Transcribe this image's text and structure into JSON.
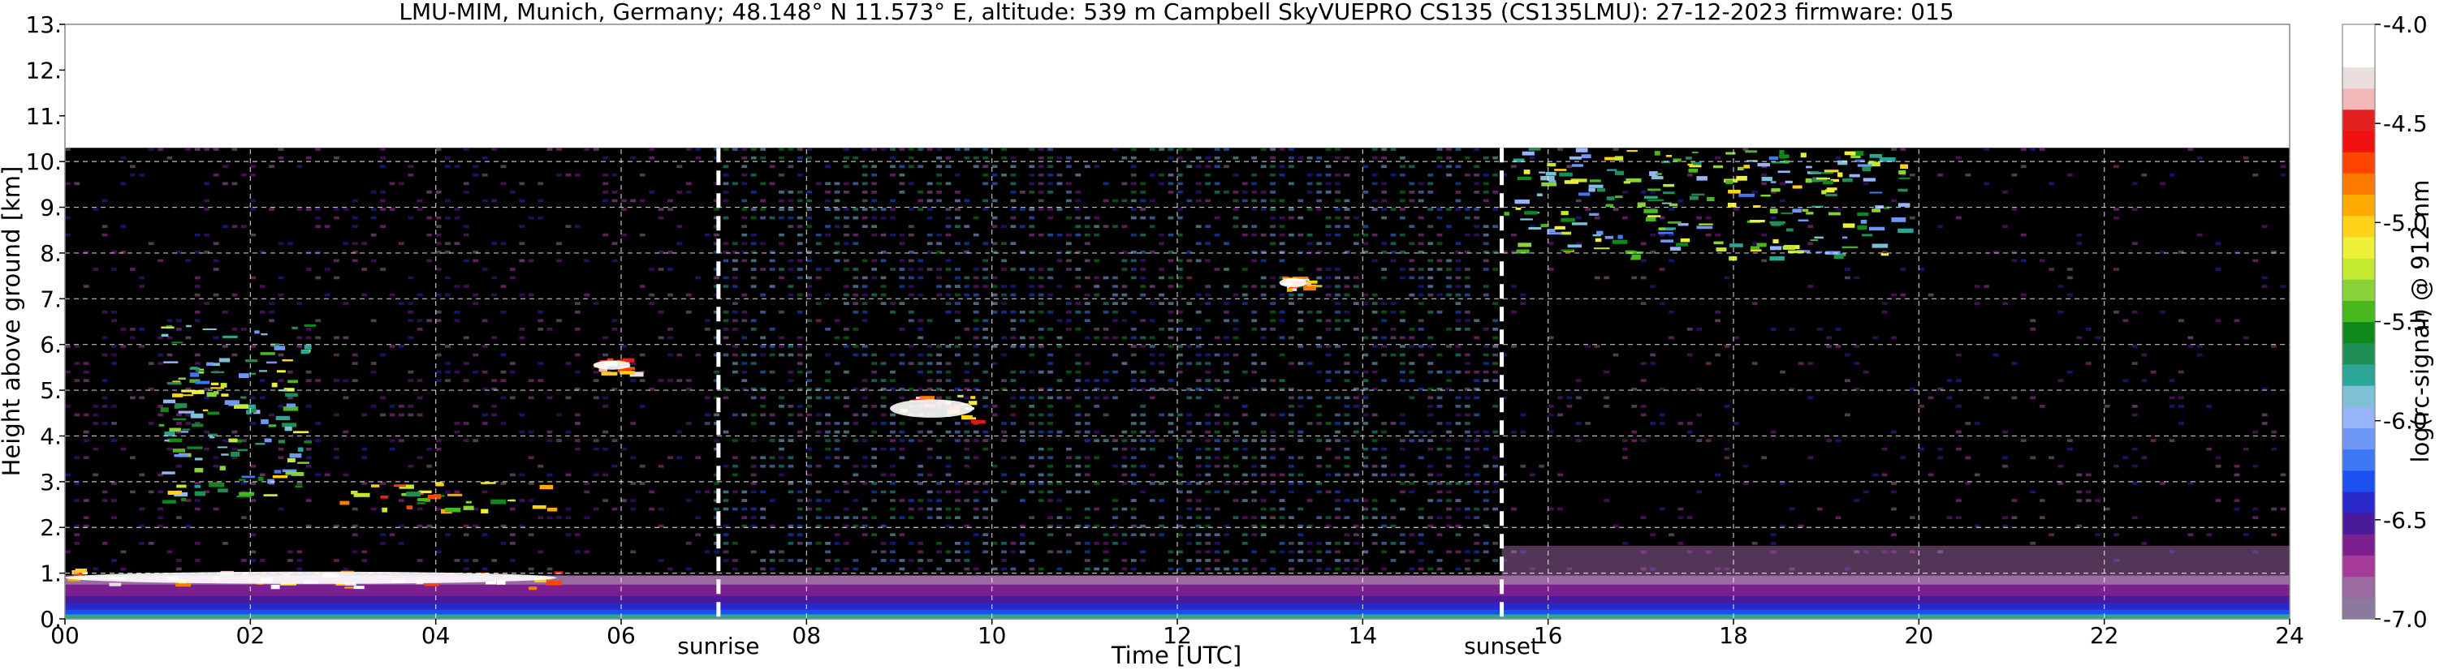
{
  "chart_data": {
    "type": "heatmap",
    "title": "LMU-MIM, Munich, Germany; 48.148° N 11.573° E, altitude: 539 m    Campbell SkyVUEPRO CS135 (CS135LMU): 27-12-2023    firmware: 015",
    "xlabel": "Time [UTC]",
    "ylabel": "Height above ground [km]",
    "xlim": [
      0,
      24
    ],
    "ylim": [
      0,
      13
    ],
    "x_ticks": [
      0,
      2,
      4,
      6,
      8,
      10,
      12,
      14,
      16,
      18,
      20,
      22,
      24
    ],
    "x_tick_labels": [
      "00",
      "02",
      "04",
      "06",
      "08",
      "10",
      "12",
      "14",
      "16",
      "18",
      "20",
      "22",
      "24"
    ],
    "y_ticks": [
      0,
      1,
      2,
      3,
      4,
      5,
      6,
      7,
      8,
      9,
      10,
      11,
      12,
      13
    ],
    "y_tick_labels": [
      "0.",
      "1.",
      "2.",
      "3.",
      "4.",
      "5.",
      "6.",
      "7.",
      "8.",
      "9.",
      "10.",
      "11.",
      "12.",
      "13."
    ],
    "grid": true,
    "data_top_km": 10.3,
    "annotations": [
      {
        "text": "sunrise",
        "x": 7.05
      },
      {
        "text": "sunset",
        "x": 15.5
      }
    ],
    "colorbar": {
      "label": "log(rc-signal) @ 912 nm",
      "range": [
        -7.0,
        -4.0
      ],
      "ticks": [
        -7.0,
        -6.5,
        -6.0,
        -5.5,
        -5.0,
        -4.5,
        -4.0
      ],
      "tick_labels": [
        "-7.0",
        "-6.5",
        "-6.0",
        "-5.5",
        "-5.0",
        "-4.5",
        "-4.0"
      ],
      "colors": [
        "#8c7a9e",
        "#9b6aa0",
        "#a63b9a",
        "#7c1f8f",
        "#4a1a9a",
        "#2a28c8",
        "#1c4ff0",
        "#3f78f5",
        "#6f98f6",
        "#96b4f7",
        "#7ec0d6",
        "#2aa596",
        "#1f8f55",
        "#0f8a1a",
        "#48b81e",
        "#8ad23a",
        "#c3ea30",
        "#eef03a",
        "#ffd21a",
        "#ffaa00",
        "#ff7a00",
        "#ff4400",
        "#f01010",
        "#e42020",
        "#f2b8b8",
        "#ebdede",
        "#ffffff",
        "#ffffff"
      ]
    },
    "features": [
      {
        "name": "surface aerosol layer",
        "x": [
          0,
          24
        ],
        "y": [
          0,
          0.95
        ]
      },
      {
        "name": "low cloud",
        "x": [
          0,
          5.3
        ],
        "y": [
          0.7,
          1.1
        ],
        "value": -4.0
      },
      {
        "name": "mid-level cloud",
        "x": [
          2.7,
          5.4
        ],
        "y": [
          2.4,
          3.0
        ],
        "value": -4.5
      },
      {
        "name": "cloud streak",
        "x": [
          1.0,
          2.6
        ],
        "y": [
          2.6,
          6.5
        ],
        "value": -5.0
      },
      {
        "name": "cloud patch",
        "x": [
          5.7,
          6.1
        ],
        "y": [
          5.4,
          5.7
        ],
        "value": -4.0
      },
      {
        "name": "cloud patch",
        "x": [
          8.9,
          9.8
        ],
        "y": [
          4.3,
          4.9
        ],
        "value": -4.2
      },
      {
        "name": "cloud patch",
        "x": [
          13.1,
          13.4
        ],
        "y": [
          7.2,
          7.5
        ],
        "value": -4.0
      },
      {
        "name": "high cirrus",
        "x": [
          15.5,
          19.8
        ],
        "y": [
          7.9,
          10.3
        ],
        "value": -5.0
      }
    ]
  }
}
